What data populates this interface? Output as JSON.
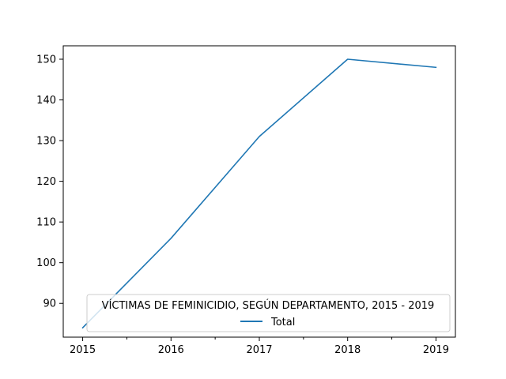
{
  "chart_data": {
    "type": "line",
    "x": [
      2015,
      2016,
      2017,
      2018,
      2019
    ],
    "x_tick_labels": [
      "2015",
      "2016",
      "2017",
      "2018",
      "2019"
    ],
    "y_ticks": [
      90,
      100,
      110,
      120,
      130,
      140,
      150
    ],
    "y_tick_labels": [
      "90",
      "100",
      "110",
      "120",
      "130",
      "140",
      "150"
    ],
    "xlim": [
      2014.78,
      2019.22
    ],
    "ylim": [
      81.7,
      153.3
    ],
    "series": [
      {
        "name": "Total",
        "color": "#1f77b4",
        "values": [
          84,
          106,
          131,
          150,
          148
        ]
      }
    ],
    "legend": {
      "title": "VÍCTIMAS DE FEMINICIDIO, SEGÚN DEPARTAMENTO, 2015 - 2019",
      "placement": "lower-right"
    },
    "grid": false
  }
}
